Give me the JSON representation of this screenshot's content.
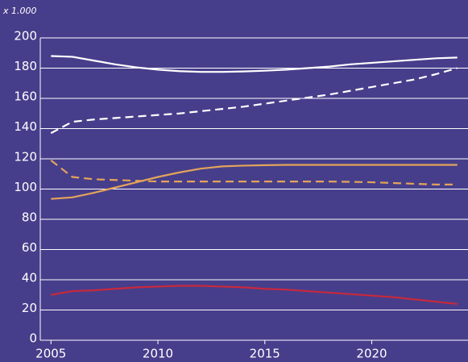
{
  "chart_data": {
    "type": "line",
    "y_unit_label": "x 1.000",
    "x": [
      2005,
      2006,
      2007,
      2008,
      2009,
      2010,
      2011,
      2012,
      2013,
      2014,
      2015,
      2016,
      2017,
      2018,
      2019,
      2020,
      2021,
      2022,
      2023,
      2024
    ],
    "series": [
      {
        "color": "#ffffff",
        "style": "solid",
        "values": [
          188,
          187.5,
          185,
          182.5,
          180.5,
          179,
          178,
          177.5,
          177.5,
          177.8,
          178.3,
          179,
          180,
          181,
          182.5,
          183.5,
          184.5,
          185.5,
          186.5,
          187
        ]
      },
      {
        "color": "#ffffff",
        "style": "dashed",
        "values": [
          137,
          144.5,
          146,
          147,
          148,
          149,
          150,
          151.5,
          153,
          154.5,
          156.5,
          158.5,
          160.5,
          162.5,
          165,
          167.5,
          170,
          172.5,
          176,
          180
        ]
      },
      {
        "color": "#e3a35a",
        "style": "solid",
        "values": [
          93.5,
          94.5,
          97.5,
          101,
          104.5,
          108,
          111,
          113.5,
          115,
          115.5,
          115.8,
          116,
          116,
          116,
          116,
          116,
          116,
          116,
          116,
          116
        ]
      },
      {
        "color": "#e3a35a",
        "style": "dashed",
        "values": [
          119,
          108,
          106.5,
          106,
          105.5,
          105,
          105,
          105,
          105,
          105,
          105,
          105,
          105,
          105,
          104.8,
          104.5,
          104,
          103.5,
          103,
          103
        ]
      },
      {
        "color": "#c8283c",
        "style": "solid",
        "values": [
          30,
          32.5,
          33,
          34,
          35,
          35.5,
          36,
          36,
          35.5,
          35,
          34,
          33.5,
          32.5,
          31.5,
          30.5,
          29.5,
          28.5,
          27,
          25.5,
          24
        ]
      }
    ],
    "xlim": [
      2004.5,
      2024.5
    ],
    "xticks": [
      2005,
      2010,
      2015,
      2020
    ],
    "ylim": [
      0,
      200
    ],
    "yticks": [
      0,
      20,
      40,
      60,
      80,
      100,
      120,
      140,
      160,
      180,
      200
    ],
    "grid": true
  }
}
